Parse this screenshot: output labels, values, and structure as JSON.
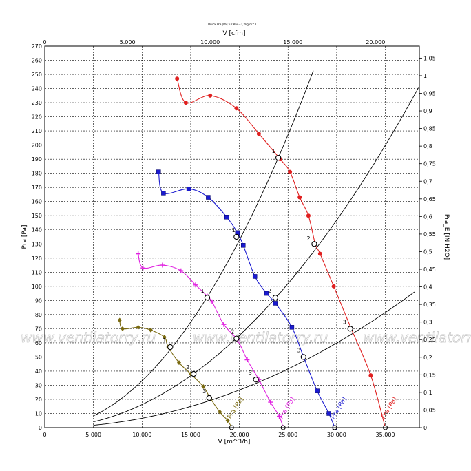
{
  "chart_data": {
    "type": "line",
    "title": "Druck Pra [Pa] für Rho=1,2kg/m^3",
    "xlabel": "V [m^3/h]",
    "ylabel": "Pra [Pa]",
    "x2label": "V [cfm]",
    "y2label": "Pra_E [IN H2O]",
    "xlim": [
      0,
      38500
    ],
    "ylim": [
      0,
      270
    ],
    "x2lim": [
      0,
      22650
    ],
    "y2lim": [
      0,
      1.084
    ],
    "grid": true,
    "x_ticks": [
      "0",
      "5.000",
      "10.000",
      "15.000",
      "20.000",
      "25.000",
      "30.000",
      "35.000"
    ],
    "x2_ticks": [
      "0",
      "5.000",
      "10.000",
      "15.000",
      "20.000"
    ],
    "y_ticks": [
      "0",
      "10",
      "20",
      "30",
      "40",
      "50",
      "60",
      "70",
      "80",
      "90",
      "100",
      "110",
      "120",
      "130",
      "140",
      "150",
      "160",
      "170",
      "180",
      "190",
      "200",
      "210",
      "220",
      "230",
      "240",
      "250",
      "260",
      "270"
    ],
    "y2_ticks": [
      "0",
      "0,05",
      "0,1",
      "0,15",
      "0,2",
      "0,25",
      "0,3",
      "0,35",
      "0,4",
      "0,45",
      "0,5",
      "0,55",
      "0,6",
      "0,65",
      "0,7",
      "0,75",
      "0,8",
      "0,85",
      "0,9",
      "0,95",
      "1",
      "1,05"
    ],
    "series": [
      {
        "name": "Pra [Pa]",
        "color": "#e02020",
        "marker": "circle",
        "values": [
          [
            13600,
            247
          ],
          [
            14500,
            230
          ],
          [
            17000,
            235
          ],
          [
            19700,
            226
          ],
          [
            22000,
            208
          ],
          [
            24200,
            190
          ],
          [
            25200,
            181
          ],
          [
            26200,
            163
          ],
          [
            27100,
            150
          ],
          [
            27800,
            130
          ],
          [
            28300,
            123
          ],
          [
            29700,
            100
          ],
          [
            31500,
            70
          ],
          [
            33500,
            37
          ],
          [
            35000,
            0
          ]
        ]
      },
      {
        "name": "Pra [Pa]",
        "color": "#1a1ad0",
        "marker": "square",
        "values": [
          [
            11700,
            181
          ],
          [
            12200,
            166
          ],
          [
            14800,
            169
          ],
          [
            16800,
            163
          ],
          [
            18700,
            149
          ],
          [
            19800,
            138
          ],
          [
            20400,
            129
          ],
          [
            21600,
            107
          ],
          [
            22800,
            95
          ],
          [
            23700,
            88
          ],
          [
            25400,
            71
          ],
          [
            26600,
            50
          ],
          [
            28000,
            26
          ],
          [
            29200,
            10
          ],
          [
            29800,
            0
          ]
        ]
      },
      {
        "name": "Pra [Pa]",
        "color": "#e020e0",
        "marker": "plus",
        "values": [
          [
            9600,
            123
          ],
          [
            10100,
            113
          ],
          [
            12100,
            115
          ],
          [
            14000,
            111
          ],
          [
            15500,
            101
          ],
          [
            16700,
            93
          ],
          [
            17200,
            89
          ],
          [
            18400,
            73
          ],
          [
            19800,
            62
          ],
          [
            20800,
            48
          ],
          [
            22000,
            34
          ],
          [
            23200,
            18
          ],
          [
            24100,
            8
          ],
          [
            24500,
            0
          ]
        ]
      },
      {
        "name": "Pra [Pa]",
        "color": "#7a6a10",
        "marker": "diamond",
        "values": [
          [
            7700,
            76
          ],
          [
            8000,
            70
          ],
          [
            9600,
            71
          ],
          [
            10900,
            69
          ],
          [
            12300,
            64
          ],
          [
            12700,
            57
          ],
          [
            13800,
            46
          ],
          [
            15000,
            38
          ],
          [
            16300,
            29
          ],
          [
            17000,
            21
          ],
          [
            18000,
            11
          ],
          [
            18800,
            5
          ],
          [
            19200,
            0
          ]
        ]
      }
    ],
    "system_curves": [
      {
        "k": 3.316e-07,
        "x_max": 27600
      },
      {
        "k": 1.631e-07,
        "x_max": 38400
      },
      {
        "k": 6.65e-08,
        "x_max": 38100
      }
    ],
    "operating_points": [
      [
        24000,
        191
      ],
      [
        19700,
        135
      ],
      [
        16700,
        92
      ],
      [
        12900,
        57
      ],
      [
        27700,
        130
      ],
      [
        23700,
        92
      ],
      [
        19700,
        63
      ],
      [
        15300,
        38
      ],
      [
        31400,
        70
      ],
      [
        26600,
        50
      ],
      [
        21700,
        34
      ],
      [
        16900,
        21
      ]
    ],
    "open_circle_on_x_axis": [
      35000,
      29800,
      24500,
      19200
    ],
    "curve_labels": [
      {
        "text": "Pra [Pa]",
        "x": 34900,
        "y": 6,
        "color": "#e02020"
      },
      {
        "text": "Pra [Pa]",
        "x": 29700,
        "y": 6,
        "color": "#1a1ad0"
      },
      {
        "text": "Pra [Pa]",
        "x": 24400,
        "y": 6,
        "color": "#e020e0"
      },
      {
        "text": "Pra [Pa]",
        "x": 19100,
        "y": 6,
        "color": "#7a6a10"
      }
    ],
    "point_labels": [
      {
        "text": "1",
        "x": 23900,
        "y": 193
      },
      {
        "text": "1",
        "x": 19800,
        "y": 137
      },
      {
        "text": "1",
        "x": 16600,
        "y": 94
      },
      {
        "text": "1",
        "x": 12700,
        "y": 59
      },
      {
        "text": "2",
        "x": 27500,
        "y": 131
      },
      {
        "text": "2",
        "x": 23500,
        "y": 94
      },
      {
        "text": "2",
        "x": 19700,
        "y": 65
      },
      {
        "text": "2",
        "x": 15100,
        "y": 40
      },
      {
        "text": "3",
        "x": 31200,
        "y": 72
      },
      {
        "text": "3",
        "x": 26500,
        "y": 52
      },
      {
        "text": "3",
        "x": 21500,
        "y": 36
      },
      {
        "text": "3",
        "x": 16800,
        "y": 23
      }
    ],
    "watermark": "www.ventilatorry.ru"
  }
}
